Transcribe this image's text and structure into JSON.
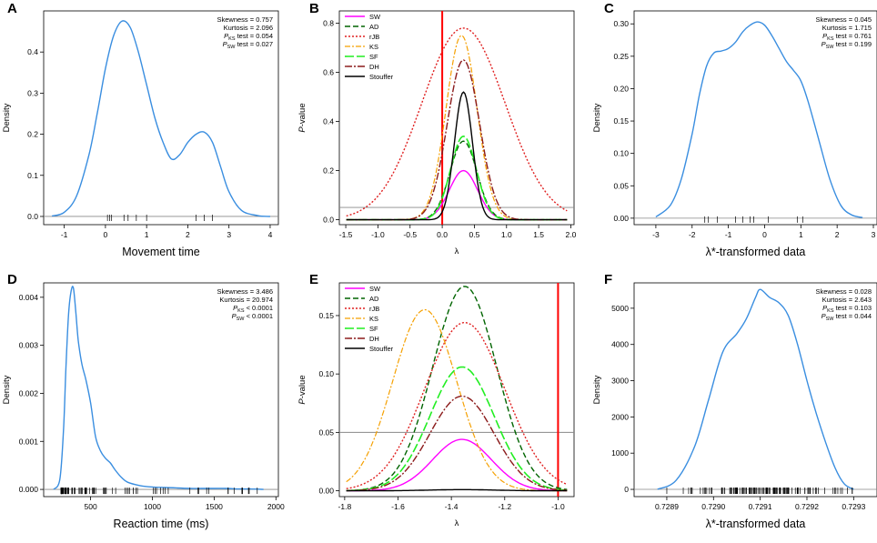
{
  "colors": {
    "curve_blue": "#3A8EE0",
    "SW": "#FF00FF",
    "AD": "#006400",
    "rJB": "#E02020",
    "KS": "#F5A000",
    "SF": "#22EE22",
    "DH": "#8B1A1A",
    "Stouffer": "#000000",
    "red_line": "#FF0000",
    "gray_line": "#888888"
  },
  "chart_data": [
    {
      "panel": "A",
      "type": "line",
      "xlabel": "Movement time",
      "ylabel": "Density",
      "xlim": [
        -1.5,
        4.2
      ],
      "ylim": [
        -0.02,
        0.5
      ],
      "xticks": [
        "-1",
        "0",
        "1",
        "2",
        "3",
        "4"
      ],
      "yticks": [
        "0.0",
        "0.1",
        "0.2",
        "0.3",
        "0.4"
      ],
      "x": [
        -1.3,
        -1.0,
        -0.7,
        -0.4,
        -0.2,
        0.0,
        0.2,
        0.4,
        0.6,
        0.8,
        1.0,
        1.2,
        1.4,
        1.6,
        1.8,
        2.0,
        2.2,
        2.4,
        2.6,
        2.8,
        3.0,
        3.3,
        3.7,
        4.0
      ],
      "y": [
        0.001,
        0.01,
        0.05,
        0.15,
        0.25,
        0.36,
        0.44,
        0.475,
        0.46,
        0.4,
        0.32,
        0.24,
        0.18,
        0.14,
        0.15,
        0.18,
        0.2,
        0.205,
        0.18,
        0.12,
        0.06,
        0.015,
        0.002,
        0.0
      ],
      "rug": [
        0.05,
        0.1,
        0.15,
        0.45,
        0.55,
        0.75,
        1.0,
        2.2,
        2.4,
        2.6
      ],
      "stats": [
        "Skewness = 0.757",
        "Kurtosis = 2.096",
        "P_KS test = 0.054",
        "P_SW test = 0.027"
      ]
    },
    {
      "panel": "B",
      "type": "line",
      "xlabel": "λ",
      "ylabel": "P-value",
      "xlim": [
        -1.6,
        2.05
      ],
      "ylim": [
        -0.02,
        0.85
      ],
      "xticks": [
        "-1.5",
        "-1.0",
        "-0.5",
        "0.0",
        "0.5",
        "1.0",
        "1.5",
        "2.0"
      ],
      "yticks": [
        "0.0",
        "0.2",
        "0.4",
        "0.6",
        "0.8"
      ],
      "vline": 0.0,
      "hline": 0.05,
      "legend": [
        "SW",
        "AD",
        "rJB",
        "KS",
        "SF",
        "DH",
        "Stouffer"
      ],
      "series": [
        {
          "name": "SW",
          "center": 0.33,
          "peak": 0.2,
          "width": 0.22
        },
        {
          "name": "AD",
          "center": 0.33,
          "peak": 0.32,
          "width": 0.21
        },
        {
          "name": "rJB",
          "center": 0.33,
          "peak": 0.78,
          "width": 0.65
        },
        {
          "name": "KS",
          "center": 0.3,
          "peak": 0.75,
          "width": 0.24
        },
        {
          "name": "SF",
          "center": 0.33,
          "peak": 0.34,
          "width": 0.2
        },
        {
          "name": "DH",
          "center": 0.33,
          "peak": 0.65,
          "width": 0.25
        },
        {
          "name": "Stouffer",
          "center": 0.33,
          "peak": 0.52,
          "width": 0.14
        }
      ]
    },
    {
      "panel": "C",
      "type": "line",
      "xlabel": "λ*-transformed data",
      "ylabel": "Density",
      "xlim": [
        -3.6,
        3.1
      ],
      "ylim": [
        -0.01,
        0.32
      ],
      "xticks": [
        "-3",
        "-2",
        "-1",
        "0",
        "1",
        "2",
        "3"
      ],
      "yticks": [
        "0.00",
        "0.05",
        "0.10",
        "0.15",
        "0.20",
        "0.25",
        "0.30"
      ],
      "x": [
        -3.0,
        -2.6,
        -2.3,
        -2.0,
        -1.8,
        -1.6,
        -1.4,
        -1.2,
        -1.0,
        -0.8,
        -0.6,
        -0.4,
        -0.2,
        0.0,
        0.2,
        0.4,
        0.6,
        0.8,
        1.0,
        1.2,
        1.5,
        1.8,
        2.1,
        2.4,
        2.7
      ],
      "y": [
        0.002,
        0.02,
        0.06,
        0.13,
        0.19,
        0.235,
        0.255,
        0.258,
        0.262,
        0.272,
        0.288,
        0.298,
        0.303,
        0.298,
        0.282,
        0.262,
        0.242,
        0.228,
        0.212,
        0.18,
        0.12,
        0.06,
        0.02,
        0.005,
        0.001
      ],
      "rug": [
        -1.65,
        -1.55,
        -1.3,
        -0.8,
        -0.6,
        -0.4,
        -0.3,
        0.1,
        0.9,
        1.05
      ],
      "stats": [
        "Skewness = 0.045",
        "Kurtosis = 1.715",
        "P_KS test = 0.761",
        "P_SW test = 0.199"
      ]
    },
    {
      "panel": "D",
      "type": "line",
      "xlabel": "Reaction time (ms)",
      "ylabel": "Density",
      "xlim": [
        120,
        2020
      ],
      "ylim": [
        -0.00015,
        0.0043
      ],
      "xticks": [
        "500",
        "1000",
        "1500",
        "2000"
      ],
      "yticks": [
        "0.000",
        "0.001",
        "0.002",
        "0.003",
        "0.004"
      ],
      "x": [
        200,
        250,
        280,
        300,
        320,
        340,
        360,
        380,
        400,
        430,
        460,
        500,
        540,
        580,
        620,
        660,
        700,
        750,
        800,
        900,
        1000,
        1100,
        1200,
        1300,
        1400,
        1500,
        1600,
        1700,
        1800,
        1900
      ],
      "y": [
        0.0,
        0.0002,
        0.0012,
        0.0025,
        0.0036,
        0.0041,
        0.0042,
        0.0037,
        0.0031,
        0.0026,
        0.0023,
        0.0018,
        0.0011,
        0.0008,
        0.00065,
        0.00055,
        0.0004,
        0.00025,
        0.00015,
        8e-05,
        5e-05,
        4e-05,
        3e-05,
        2e-05,
        2e-05,
        2e-05,
        2e-05,
        1e-05,
        1e-05,
        0.0
      ],
      "stats": [
        "Skewness = 3.486",
        "Kurtosis = 20.974",
        "P_KS < 0.0001",
        "P_SW < 0.0001"
      ]
    },
    {
      "panel": "E",
      "type": "line",
      "xlabel": "λ",
      "ylabel": "P-value",
      "xlim": [
        -1.82,
        -0.94
      ],
      "ylim": [
        -0.005,
        0.178
      ],
      "xticks": [
        "-1.8",
        "-1.6",
        "-1.4",
        "-1.2",
        "-1.0"
      ],
      "yticks": [
        "0.00",
        "0.05",
        "0.10",
        "0.15"
      ],
      "vline": -1.0,
      "hline": 0.05,
      "legend": [
        "SW",
        "AD",
        "rJB",
        "KS",
        "SF",
        "DH",
        "Stouffer"
      ],
      "series": [
        {
          "name": "SW",
          "center": -1.36,
          "peak": 0.044,
          "width": 0.11
        },
        {
          "name": "AD",
          "center": -1.35,
          "peak": 0.175,
          "width": 0.12
        },
        {
          "name": "rJB",
          "center": -1.35,
          "peak": 0.144,
          "width": 0.15
        },
        {
          "name": "KS",
          "center": -1.5,
          "peak": 0.155,
          "width": 0.12
        },
        {
          "name": "SF",
          "center": -1.36,
          "peak": 0.106,
          "width": 0.12
        },
        {
          "name": "DH",
          "center": -1.36,
          "peak": 0.081,
          "width": 0.12
        },
        {
          "name": "Stouffer",
          "center": -1.36,
          "peak": 0.001,
          "width": 0.12
        }
      ]
    },
    {
      "panel": "F",
      "type": "line",
      "xlabel": "λ*-transformed data",
      "ylabel": "Density",
      "xlim": [
        0.72883,
        0.72935
      ],
      "ylim": [
        -200,
        5700
      ],
      "xticks": [
        "0.7289",
        "0.7290",
        "0.7291",
        "0.7292",
        "0.7293"
      ],
      "yticks": [
        "0",
        "1000",
        "2000",
        "3000",
        "4000",
        "5000"
      ],
      "x": [
        0.72888,
        0.72892,
        0.72896,
        0.72899,
        0.72902,
        0.72905,
        0.72907,
        0.72909,
        0.7291,
        0.72912,
        0.72914,
        0.72916,
        0.72918,
        0.7292,
        0.72922,
        0.72924,
        0.72926,
        0.72928,
        0.7293
      ],
      "y": [
        0,
        250,
        1200,
        2500,
        3800,
        4300,
        4700,
        5300,
        5520,
        5300,
        5150,
        4800,
        4000,
        3000,
        2100,
        1300,
        600,
        150,
        0
      ],
      "stats": [
        "Skewness = 0.028",
        "Kurtosis = 2.643",
        "P_KS test = 0.103",
        "P_SW test = 0.044"
      ]
    }
  ]
}
